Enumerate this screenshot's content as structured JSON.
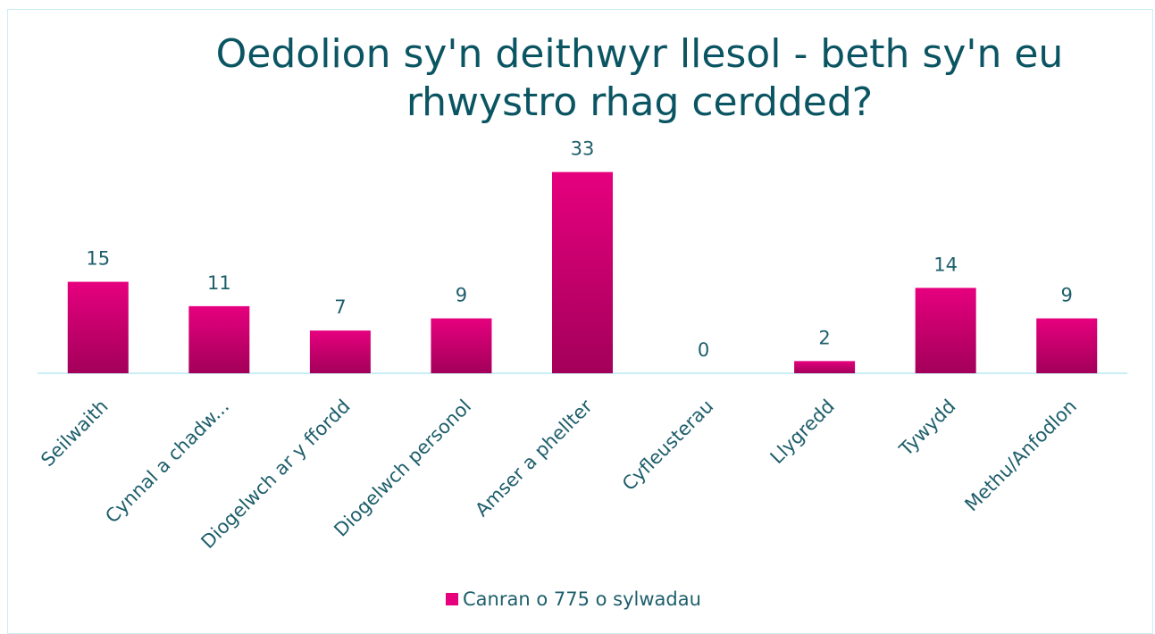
{
  "chart_data": {
    "type": "bar",
    "title": "Oedolion sy'n deithwyr llesol - beth sy'n eu rhwystro rhag cerdded?",
    "categories": [
      "Seilwaith",
      "Cynnal a chadw...",
      "Diogelwch ar y ffordd",
      "Diogelwch personol",
      "Amser a phellter",
      "Cyfleusterau",
      "Llygredd",
      "Tywydd",
      "Methu/Anfodlon"
    ],
    "series": [
      {
        "name": "Canran o 775 o sylwadau",
        "color": "#e6007e",
        "values": [
          15,
          11,
          7,
          9,
          33,
          0,
          2,
          14,
          9
        ]
      }
    ],
    "ylim": [
      0,
      35
    ],
    "legend": "bottom"
  }
}
